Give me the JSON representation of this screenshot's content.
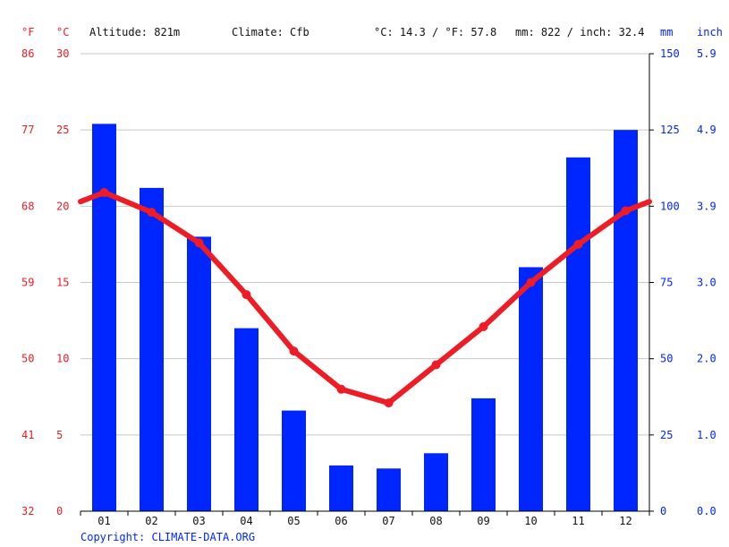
{
  "header": {
    "altitude": "Altitude: 821m",
    "climate": "Climate: Cfb",
    "temp_avg": "°C: 14.3 / °F: 57.8",
    "precip_total": "mm: 822 / inch: 32.4"
  },
  "copyright": "Copyright: CLIMATE-DATA.ORG",
  "colors": {
    "temperature": "#ee1c25",
    "precipitation": "#0026ff",
    "grid": "#c8c8c8"
  },
  "chart_data": {
    "type": "bar",
    "categories": [
      "01",
      "02",
      "03",
      "04",
      "05",
      "06",
      "07",
      "08",
      "09",
      "10",
      "11",
      "12"
    ],
    "series": [
      {
        "type": "bar",
        "axis": "right",
        "unit": "mm",
        "values": [
          127,
          106,
          90,
          60,
          33,
          15,
          14,
          19,
          37,
          80,
          116,
          125
        ]
      },
      {
        "type": "line",
        "axis": "left",
        "unit": "°C",
        "values": [
          20.9,
          19.6,
          17.6,
          14.2,
          10.5,
          8.0,
          7.1,
          9.6,
          12.1,
          15.0,
          17.5,
          19.7
        ]
      }
    ],
    "y_left": {
      "units": [
        "°F",
        "°C"
      ],
      "ylim": [
        0,
        30
      ],
      "ticks_c": [
        "0",
        "5",
        "10",
        "15",
        "20",
        "25",
        "30"
      ],
      "ticks_f": [
        "32",
        "41",
        "50",
        "59",
        "68",
        "77",
        "86"
      ]
    },
    "y_right": {
      "units": [
        "mm",
        "inch"
      ],
      "ylim": [
        0,
        150
      ],
      "ticks_mm": [
        "0",
        "25",
        "50",
        "75",
        "100",
        "125",
        "150"
      ],
      "ticks_inch": [
        "0.0",
        "1.0",
        "2.0",
        "3.0",
        "3.9",
        "4.9",
        "5.9"
      ]
    },
    "grid": true,
    "legend": "none"
  }
}
